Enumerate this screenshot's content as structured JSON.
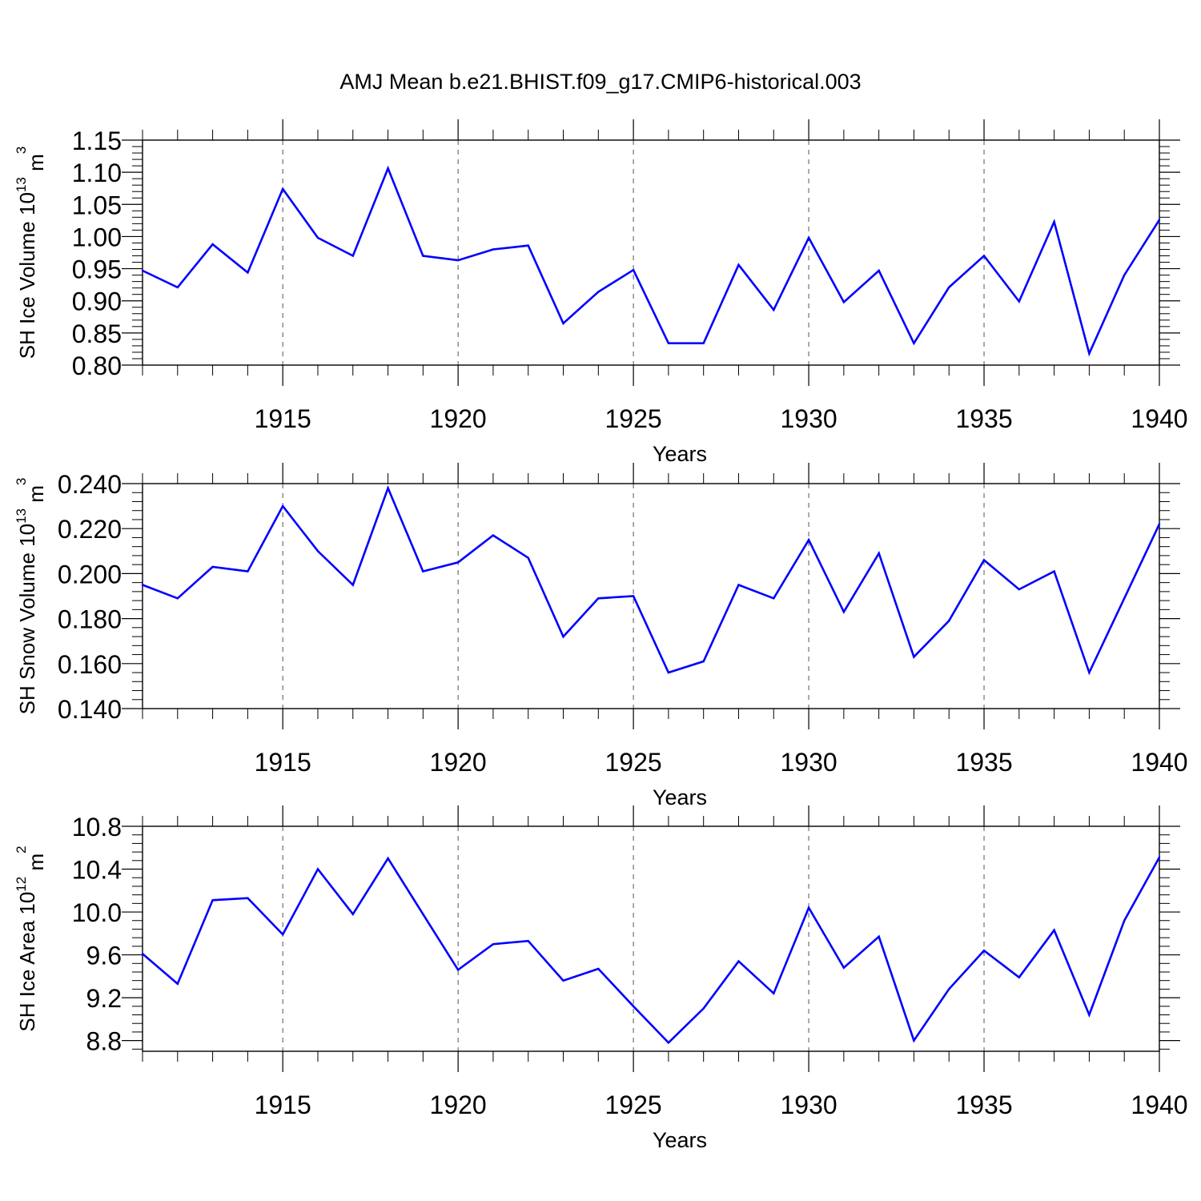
{
  "title": "AMJ Mean b.e21.BHIST.f09_g17.CMIP6-historical.003",
  "colors": {
    "line": "#0000ff",
    "axis": "#000000",
    "grid": "#555555"
  },
  "chart_data": [
    {
      "type": "line",
      "xlabel": "Years",
      "ylabel": {
        "main": "SH Ice Volume 10",
        "exp": "13",
        "unit": " m",
        "unit_exp": "3"
      },
      "xlim": [
        1911,
        1940
      ],
      "ylim": [
        0.8,
        1.15
      ],
      "xticks": [
        1915,
        1920,
        1925,
        1930,
        1935,
        1940
      ],
      "yticks": [
        "0.80",
        "0.85",
        "0.90",
        "0.95",
        "1.00",
        "1.05",
        "1.10",
        "1.15"
      ],
      "grid": "vertical dashed at major x ticks",
      "x": [
        1911,
        1912,
        1913,
        1914,
        1915,
        1916,
        1917,
        1918,
        1919,
        1920,
        1921,
        1922,
        1923,
        1924,
        1925,
        1926,
        1927,
        1928,
        1929,
        1930,
        1931,
        1932,
        1933,
        1934,
        1935,
        1936,
        1937,
        1938,
        1939,
        1940
      ],
      "values": [
        0.947,
        0.921,
        0.988,
        0.944,
        1.074,
        0.998,
        0.97,
        1.106,
        0.97,
        0.963,
        0.98,
        0.986,
        0.865,
        0.914,
        0.948,
        0.834,
        0.834,
        0.956,
        0.886,
        0.998,
        0.898,
        0.947,
        0.834,
        0.921,
        0.97,
        0.899,
        1.023,
        0.818,
        0.94,
        1.026
      ]
    },
    {
      "type": "line",
      "xlabel": "Years",
      "ylabel": {
        "main": "SH Snow Volume 10",
        "exp": "13",
        "unit": " m",
        "unit_exp": "3"
      },
      "xlim": [
        1911,
        1940
      ],
      "ylim": [
        0.14,
        0.24
      ],
      "xticks": [
        1915,
        1920,
        1925,
        1930,
        1935,
        1940
      ],
      "yticks": [
        "0.140",
        "0.160",
        "0.180",
        "0.200",
        "0.220",
        "0.240"
      ],
      "grid": "vertical dashed at major x ticks",
      "x": [
        1911,
        1912,
        1913,
        1914,
        1915,
        1916,
        1917,
        1918,
        1919,
        1920,
        1921,
        1922,
        1923,
        1924,
        1925,
        1926,
        1927,
        1928,
        1929,
        1930,
        1931,
        1932,
        1933,
        1934,
        1935,
        1936,
        1937,
        1938,
        1939,
        1940
      ],
      "values": [
        0.195,
        0.189,
        0.203,
        0.201,
        0.23,
        0.21,
        0.195,
        0.238,
        0.201,
        0.205,
        0.217,
        0.207,
        0.172,
        0.189,
        0.19,
        0.156,
        0.161,
        0.195,
        0.189,
        0.215,
        0.183,
        0.209,
        0.163,
        0.179,
        0.206,
        0.193,
        0.201,
        0.156,
        0.189,
        0.222
      ]
    },
    {
      "type": "line",
      "xlabel": "Years",
      "ylabel": {
        "main": "SH Ice Area 10",
        "exp": "12",
        "unit": " m",
        "unit_exp": "2"
      },
      "xlim": [
        1911,
        1940
      ],
      "ylim": [
        8.7,
        10.8
      ],
      "xticks": [
        1915,
        1920,
        1925,
        1930,
        1935,
        1940
      ],
      "yticks": [
        "8.8",
        "9.2",
        "9.6",
        "10.0",
        "10.4",
        "10.8"
      ],
      "grid": "vertical dashed at major x ticks",
      "x": [
        1911,
        1912,
        1913,
        1914,
        1915,
        1916,
        1917,
        1918,
        1919,
        1920,
        1921,
        1922,
        1923,
        1924,
        1925,
        1926,
        1927,
        1928,
        1929,
        1930,
        1931,
        1932,
        1933,
        1934,
        1935,
        1936,
        1937,
        1938,
        1939,
        1940
      ],
      "values": [
        9.61,
        9.33,
        10.11,
        10.13,
        9.79,
        10.4,
        9.98,
        10.5,
        9.98,
        9.46,
        9.7,
        9.73,
        9.36,
        9.47,
        9.12,
        8.78,
        9.1,
        9.54,
        9.24,
        10.04,
        9.48,
        9.77,
        8.8,
        9.28,
        9.64,
        9.39,
        9.83,
        9.04,
        9.92,
        10.51
      ]
    }
  ]
}
